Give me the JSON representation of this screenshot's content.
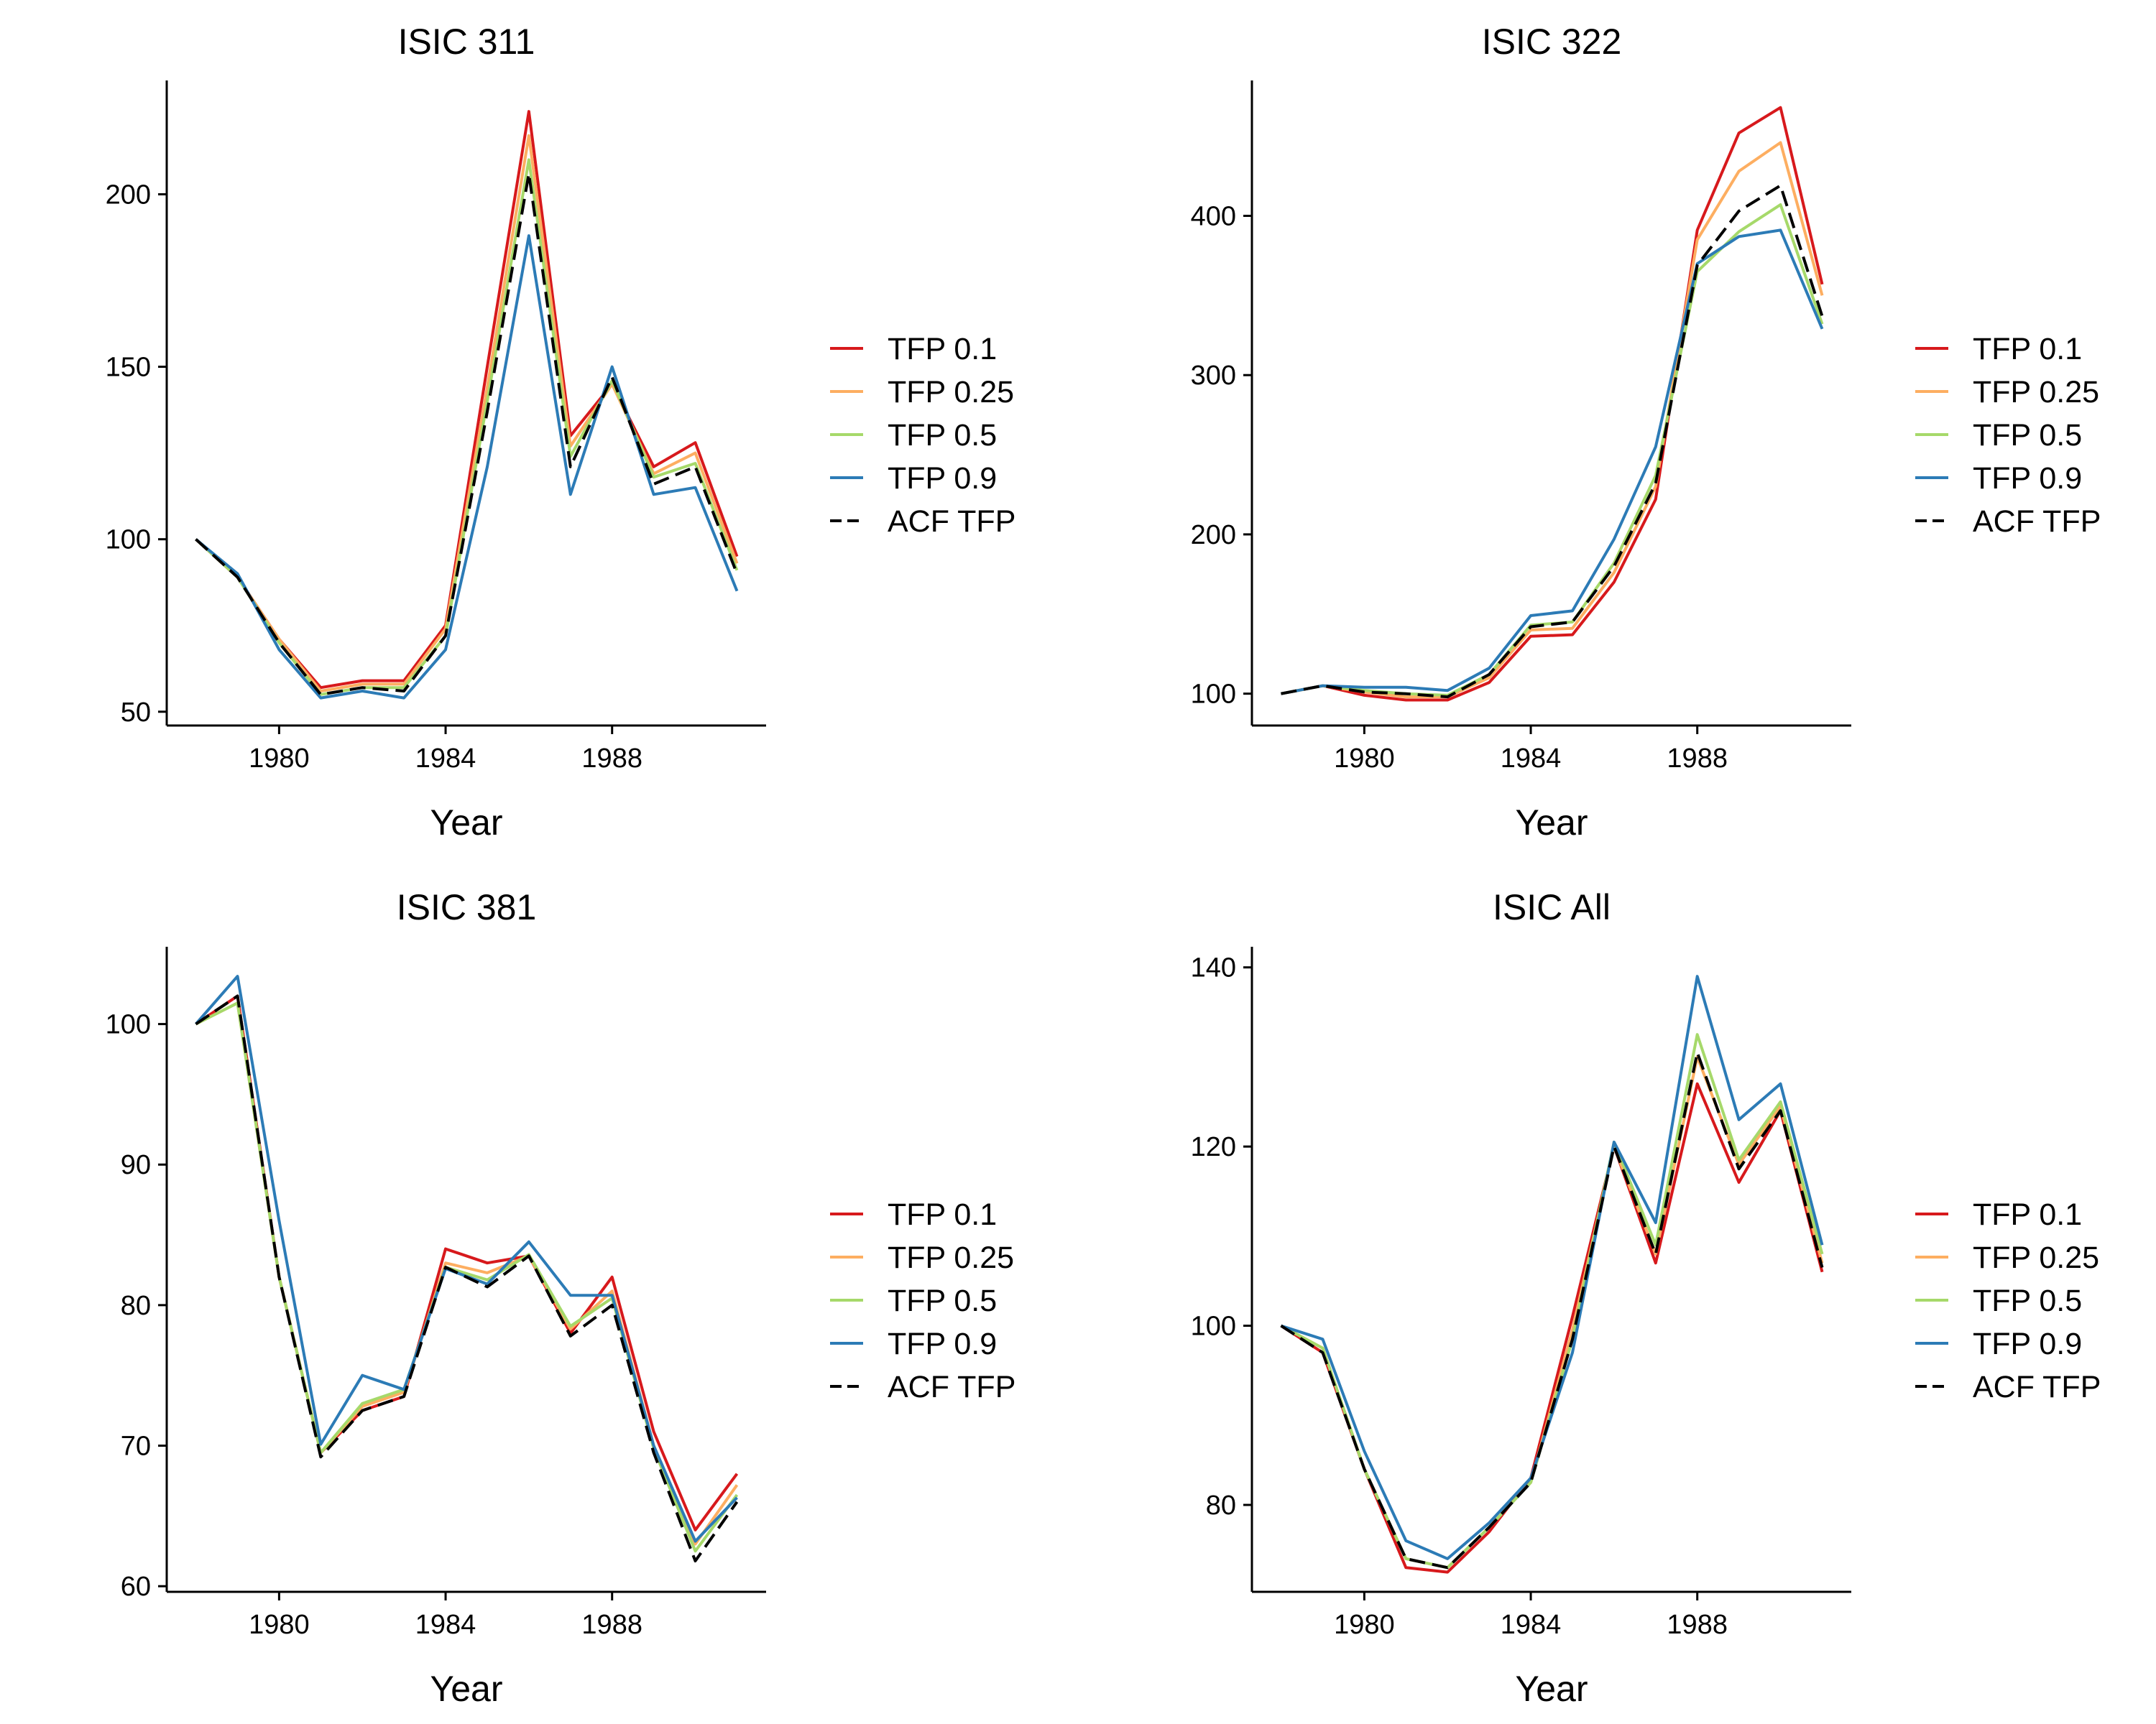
{
  "colors": {
    "TFP 0.1": "#d7191c",
    "TFP 0.25": "#fdae61",
    "TFP 0.5": "#a6d96a",
    "TFP 0.9": "#2c7bb6",
    "ACF TFP": "#000000"
  },
  "chart_data": [
    {
      "type": "line",
      "title": "ISIC 311",
      "xlabel": "Year",
      "ylabel": "",
      "x": [
        1978,
        1979,
        1980,
        1981,
        1982,
        1983,
        1984,
        1985,
        1986,
        1987,
        1988,
        1989,
        1990,
        1991
      ],
      "xticks": [
        1980,
        1984,
        1988
      ],
      "yticks": [
        50,
        100,
        150,
        200
      ],
      "xlim": [
        1977.3,
        1991.7
      ],
      "ylim": [
        46,
        233
      ],
      "grid": false,
      "legend_position": "right",
      "series": [
        {
          "name": "TFP 0.1",
          "values": [
            100,
            89,
            71,
            57,
            59,
            59,
            75,
            150,
            224,
            130,
            145,
            121,
            128,
            95
          ]
        },
        {
          "name": "TFP 0.25",
          "values": [
            100,
            89,
            71,
            56,
            58,
            58,
            74,
            144,
            217,
            127,
            145,
            119,
            125,
            93
          ]
        },
        {
          "name": "TFP 0.5",
          "values": [
            100,
            89,
            70,
            55,
            57,
            57,
            72,
            140,
            210,
            124,
            146,
            118,
            122,
            91
          ]
        },
        {
          "name": "TFP 0.9",
          "values": [
            100,
            90,
            68,
            54,
            56,
            54,
            68,
            121,
            188,
            113,
            150,
            113,
            115,
            85
          ]
        },
        {
          "name": "ACF TFP",
          "values": [
            100,
            89,
            70,
            55,
            57,
            56,
            72,
            137,
            206,
            121,
            147,
            116,
            121,
            90
          ]
        }
      ]
    },
    {
      "type": "line",
      "title": "ISIC 322",
      "xlabel": "Year",
      "ylabel": "",
      "x": [
        1978,
        1979,
        1980,
        1981,
        1982,
        1983,
        1984,
        1985,
        1986,
        1987,
        1988,
        1989,
        1990,
        1991
      ],
      "xticks": [
        1980,
        1984,
        1988
      ],
      "yticks": [
        100,
        200,
        300,
        400
      ],
      "xlim": [
        1977.3,
        1991.7
      ],
      "ylim": [
        80,
        485
      ],
      "grid": false,
      "legend_position": "right",
      "series": [
        {
          "name": "TFP 0.1",
          "values": [
            100,
            105,
            99,
            96,
            96,
            107,
            136,
            137,
            170,
            222,
            391,
            452,
            468,
            357
          ]
        },
        {
          "name": "TFP 0.25",
          "values": [
            100,
            105,
            101,
            98,
            98,
            110,
            140,
            141,
            176,
            230,
            385,
            428,
            446,
            350
          ]
        },
        {
          "name": "TFP 0.5",
          "values": [
            100,
            105,
            102,
            100,
            99,
            112,
            143,
            145,
            182,
            237,
            365,
            390,
            407,
            332
          ]
        },
        {
          "name": "TFP 0.9",
          "values": [
            100,
            105,
            104,
            104,
            102,
            116,
            149,
            152,
            197,
            255,
            370,
            387,
            391,
            329
          ]
        },
        {
          "name": "ACF TFP",
          "values": [
            100,
            105,
            101,
            100,
            98,
            112,
            142,
            145,
            180,
            232,
            369,
            403,
            419,
            337
          ]
        }
      ]
    },
    {
      "type": "line",
      "title": "ISIC 381",
      "xlabel": "Year",
      "ylabel": "",
      "x": [
        1978,
        1979,
        1980,
        1981,
        1982,
        1983,
        1984,
        1985,
        1986,
        1987,
        1988,
        1989,
        1990,
        1991
      ],
      "xticks": [
        1980,
        1984,
        1988
      ],
      "yticks": [
        60,
        70,
        80,
        90,
        100
      ],
      "xlim": [
        1977.3,
        1991.7
      ],
      "ylim": [
        59.6,
        105.5
      ],
      "grid": false,
      "legend_position": "right",
      "series": [
        {
          "name": "TFP 0.1",
          "values": [
            100,
            102,
            82,
            69.5,
            72.5,
            73.5,
            84,
            83,
            83.5,
            78,
            82,
            71,
            64,
            68
          ]
        },
        {
          "name": "TFP 0.25",
          "values": [
            100,
            101.5,
            82,
            69.5,
            72.8,
            73.8,
            83,
            82.3,
            83.5,
            78.3,
            81,
            70,
            63,
            67.2
          ]
        },
        {
          "name": "TFP 0.5",
          "values": [
            100,
            101.5,
            82,
            69.5,
            73,
            74,
            82.7,
            81.8,
            83.6,
            78.5,
            80.5,
            69.8,
            62.5,
            66.5
          ]
        },
        {
          "name": "TFP 0.9",
          "values": [
            100,
            103.4,
            86,
            70.1,
            75,
            74,
            82.6,
            81.5,
            84.5,
            80.7,
            80.7,
            70,
            63.2,
            66.3
          ]
        },
        {
          "name": "ACF TFP",
          "values": [
            100,
            102,
            82,
            69.2,
            72.5,
            73.5,
            82.7,
            81.3,
            83.5,
            77.8,
            80,
            69.5,
            61.8,
            66
          ]
        }
      ]
    },
    {
      "type": "line",
      "title": "ISIC All",
      "xlabel": "Year",
      "ylabel": "",
      "x": [
        1978,
        1979,
        1980,
        1981,
        1982,
        1983,
        1984,
        1985,
        1986,
        1987,
        1988,
        1989,
        1990,
        1991
      ],
      "xticks": [
        1980,
        1984,
        1988
      ],
      "yticks": [
        80,
        100,
        120,
        140
      ],
      "xlim": [
        1977.3,
        1991.7
      ],
      "ylim": [
        70.3,
        142.3
      ],
      "grid": false,
      "legend_position": "right",
      "series": [
        {
          "name": "TFP 0.1",
          "values": [
            100,
            97,
            84,
            73,
            72.5,
            77,
            83,
            101,
            120,
            107,
            127,
            116,
            124,
            106
          ]
        },
        {
          "name": "TFP 0.25",
          "values": [
            100,
            97.5,
            84,
            74,
            73,
            77.5,
            82.5,
            99.5,
            120,
            108,
            130,
            118,
            124.5,
            107
          ]
        },
        {
          "name": "TFP 0.5",
          "values": [
            100,
            97.5,
            84,
            74,
            73,
            77.5,
            82.5,
            98.5,
            120.5,
            109,
            132.5,
            118.5,
            125,
            108
          ]
        },
        {
          "name": "TFP 0.9",
          "values": [
            100,
            98.5,
            86,
            76,
            74,
            78,
            83,
            97,
            120.5,
            111.5,
            139,
            123,
            127,
            109
          ]
        },
        {
          "name": "ACF TFP",
          "values": [
            100,
            97,
            84,
            74,
            73,
            77.5,
            82.5,
            98.5,
            120,
            108,
            130.5,
            117.5,
            124,
            106.5
          ]
        }
      ]
    }
  ]
}
